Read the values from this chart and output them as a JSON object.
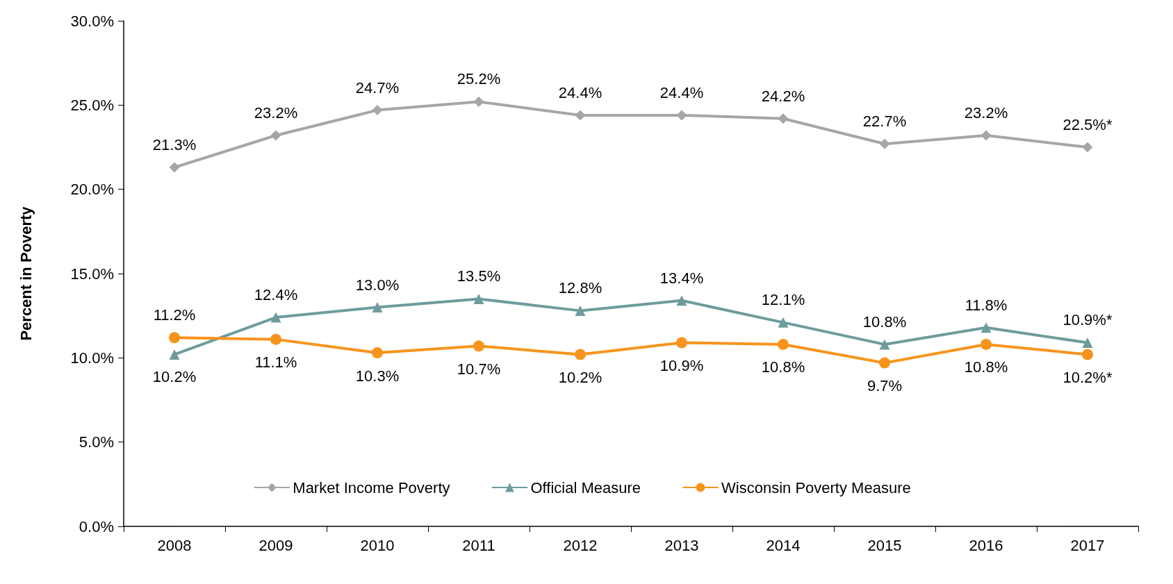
{
  "chart_data": {
    "type": "line",
    "ylabel": "Percent in Poverty",
    "categories": [
      "2008",
      "2009",
      "2010",
      "2011",
      "2012",
      "2013",
      "2014",
      "2015",
      "2016",
      "2017"
    ],
    "series": [
      {
        "name": "Market Income Poverty",
        "color": "#a6a6a6",
        "marker": "diamond",
        "values": [
          21.3,
          23.2,
          24.7,
          25.2,
          24.4,
          24.4,
          24.2,
          22.7,
          23.2,
          22.5
        ],
        "value_labels": [
          "21.3%",
          "23.2%",
          "24.7%",
          "25.2%",
          "24.4%",
          "24.4%",
          "24.2%",
          "22.7%",
          "23.2%",
          "22.5%*"
        ]
      },
      {
        "name": "Official Measure",
        "color": "#6e9c9c",
        "marker": "triangle",
        "values": [
          10.2,
          12.4,
          13.0,
          13.5,
          12.8,
          13.4,
          12.1,
          10.8,
          11.8,
          10.9
        ],
        "value_labels": [
          "10.2%",
          "12.4%",
          "13.0%",
          "13.5%",
          "12.8%",
          "13.4%",
          "12.1%",
          "10.8%",
          "11.8%",
          "10.9%*"
        ]
      },
      {
        "name": "Wisconsin Poverty Measure",
        "color": "#f7941d",
        "marker": "circle",
        "values": [
          11.2,
          11.1,
          10.3,
          10.7,
          10.2,
          10.9,
          10.8,
          9.7,
          10.8,
          10.2
        ],
        "value_labels": [
          "11.2%",
          "11.1%",
          "10.3%",
          "10.7%",
          "10.2%",
          "10.9%",
          "10.8%",
          "9.7%",
          "10.8%",
          "10.2%*"
        ]
      }
    ],
    "ylim": [
      0,
      30
    ],
    "yticks": [
      {
        "value": 0,
        "label": "0.0%"
      },
      {
        "value": 5,
        "label": "5.0%"
      },
      {
        "value": 10,
        "label": "10.0%"
      },
      {
        "value": 15,
        "label": "15.0%"
      },
      {
        "value": 20,
        "label": "20.0%"
      },
      {
        "value": 25,
        "label": "25.0%"
      },
      {
        "value": 30,
        "label": "30.0%"
      }
    ],
    "grid": false,
    "legend": "bottom",
    "line_style": "solid"
  }
}
